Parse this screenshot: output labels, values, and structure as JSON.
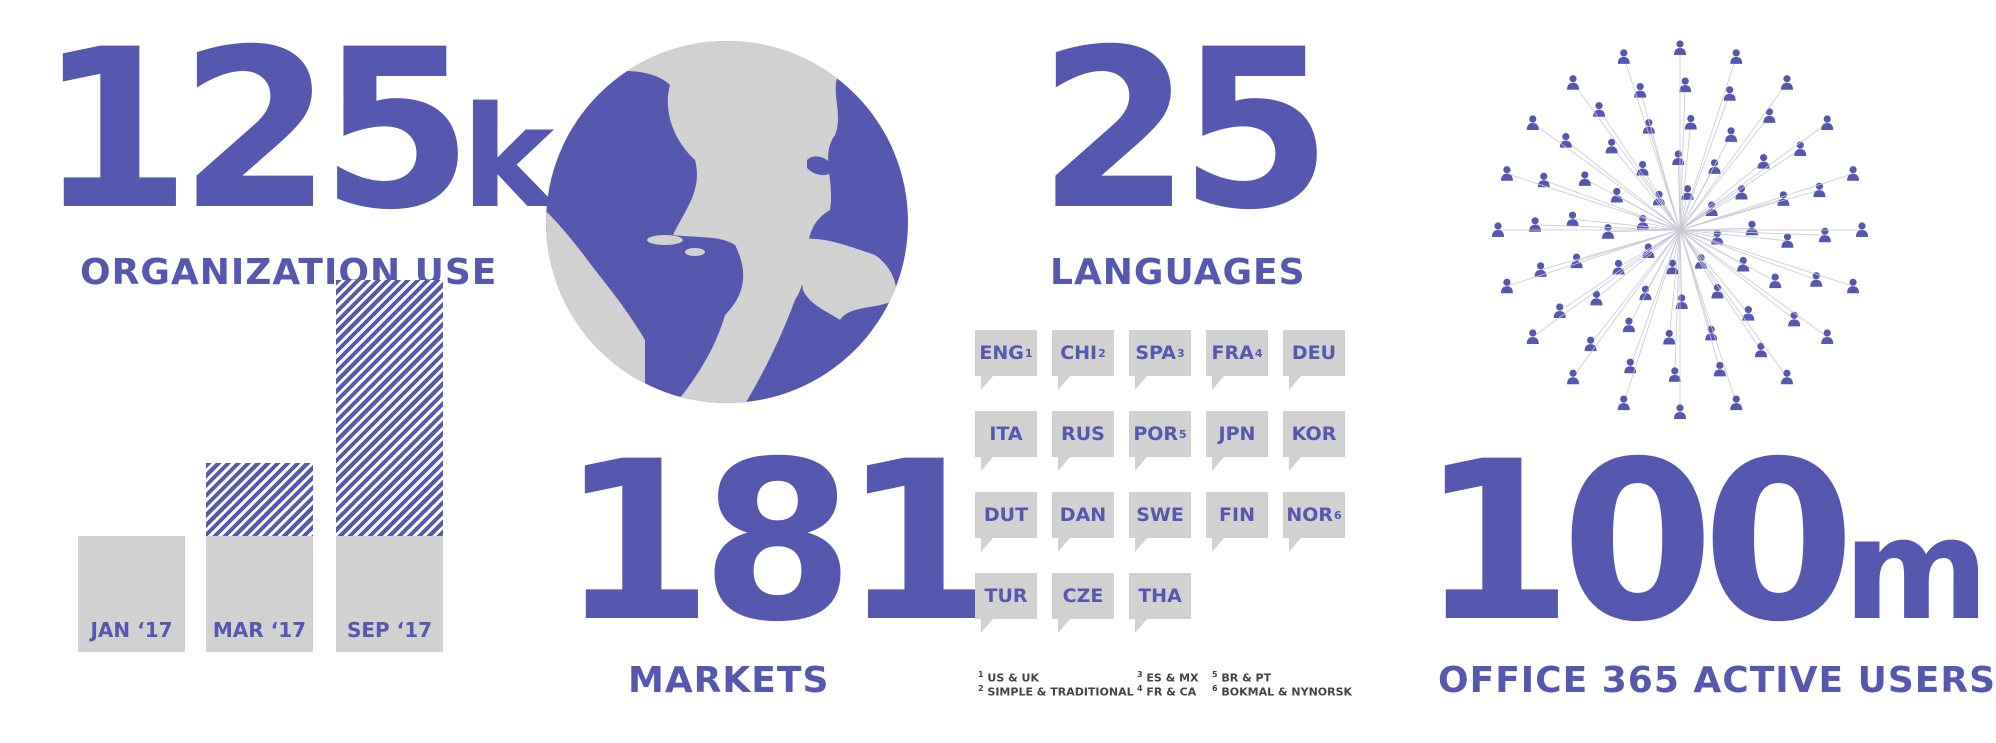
{
  "colors": {
    "accent": "#5558ae",
    "gray": "#d1d1d1"
  },
  "stats": {
    "organizations": {
      "number": "125",
      "suffix": "k",
      "label": "ORGANIZATION USE"
    },
    "markets": {
      "number": "181",
      "label": "MARKETS"
    },
    "languages": {
      "number": "25",
      "label": "LANGUAGES"
    },
    "users": {
      "number": "100",
      "suffix": "m",
      "label": "OFFICE 365 ACTIVE USERS"
    }
  },
  "bar_chart": {
    "categories": [
      "JAN ‘17",
      "MAR ‘17",
      "SEP ‘17"
    ],
    "gray_fraction": [
      0.35,
      0.35,
      0.35
    ],
    "hatched_fraction": [
      0.0,
      0.22,
      0.77
    ]
  },
  "language_bubbles": [
    {
      "code": "ENG",
      "note": "1"
    },
    {
      "code": "CHI",
      "note": "2"
    },
    {
      "code": "SPA",
      "note": "3"
    },
    {
      "code": "FRA",
      "note": "4"
    },
    {
      "code": "DEU",
      "note": ""
    },
    {
      "code": "ITA",
      "note": ""
    },
    {
      "code": "RUS",
      "note": ""
    },
    {
      "code": "POR",
      "note": "5"
    },
    {
      "code": "JPN",
      "note": ""
    },
    {
      "code": "KOR",
      "note": ""
    },
    {
      "code": "DUT",
      "note": ""
    },
    {
      "code": "DAN",
      "note": ""
    },
    {
      "code": "SWE",
      "note": ""
    },
    {
      "code": "FIN",
      "note": ""
    },
    {
      "code": "NOR",
      "note": "6"
    },
    {
      "code": "TUR",
      "note": ""
    },
    {
      "code": "CZE",
      "note": ""
    },
    {
      "code": "THA",
      "note": ""
    }
  ],
  "footnotes": [
    {
      "num": "1",
      "text": "US & UK"
    },
    {
      "num": "2",
      "text": "SIMPLE & TRADITIONAL"
    },
    {
      "num": "3",
      "text": "ES & MX"
    },
    {
      "num": "4",
      "text": "FR & CA"
    },
    {
      "num": "5",
      "text": "BR & PT"
    },
    {
      "num": "6",
      "text": "BOKMAL & NYNORSK"
    }
  ],
  "icons": {
    "globe": "globe-icon",
    "network": "people-network-icon",
    "person": "person-icon"
  }
}
